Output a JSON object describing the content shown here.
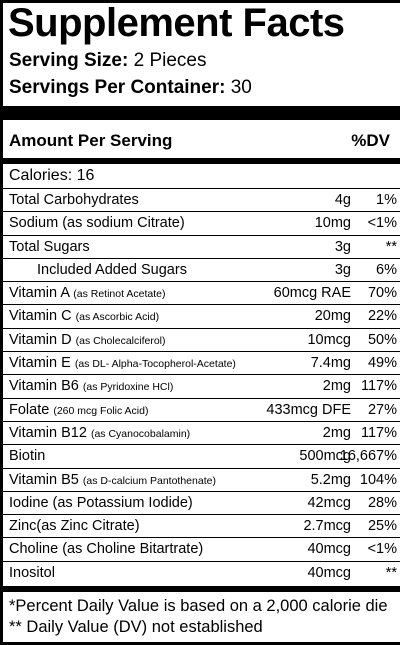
{
  "title": "Supplement Facts",
  "serving_size": {
    "label": "Serving Size:",
    "value": "2 Pieces"
  },
  "servings_per_container": {
    "label": "Servings Per Container:",
    "value": "30"
  },
  "table_header": {
    "amount": "Amount Per Serving",
    "dv": "%DV"
  },
  "calories": "Calories: 16",
  "rows": [
    {
      "name": "Total Carbohydrates",
      "sub": "",
      "amount": "4g",
      "dv": "1%",
      "indent": false
    },
    {
      "name": "Sodium (as sodium Citrate)",
      "sub": "",
      "amount": "10mg",
      "dv": "<1%",
      "indent": false
    },
    {
      "name": "Total Sugars",
      "sub": "",
      "amount": "3g",
      "dv": "**",
      "indent": false
    },
    {
      "name": "Included Added Sugars",
      "sub": "",
      "amount": "3g",
      "dv": "6%",
      "indent": true
    },
    {
      "name": "Vitamin A",
      "sub": "(as Retinot Acetate)",
      "amount": "60mcg RAE",
      "dv": "70%",
      "indent": false
    },
    {
      "name": "Vitamin C",
      "sub": "(as Ascorbic Acid)",
      "amount": "20mg",
      "dv": "22%",
      "indent": false
    },
    {
      "name": "Vitamin D",
      "sub": "(as Cholecalciferol)",
      "amount": "10mcg",
      "dv": "50%",
      "indent": false
    },
    {
      "name": "Vitamin E",
      "sub": "(as DL- Alpha-Tocopherol-Acetate)",
      "amount": "7.4mg",
      "dv": "49%",
      "indent": false
    },
    {
      "name": "Vitamin B6",
      "sub": "(as Pyridoxine HCl)",
      "amount": "2mg",
      "dv": "117%",
      "indent": false
    },
    {
      "name": "Folate",
      "sub": "(260 mcg Folic Acid)",
      "amount": "433mcg DFE",
      "dv": "27%",
      "indent": false
    },
    {
      "name": "Vitamin B12",
      "sub": "(as Cyanocobalamin)",
      "amount": "2mg",
      "dv": "117%",
      "indent": false
    },
    {
      "name": "Biotin",
      "sub": "",
      "amount": "500mcg",
      "dv": "16,667%",
      "indent": false
    },
    {
      "name": "Vitamin B5",
      "sub": "(as D-calcium Pantothenate)",
      "amount": "5.2mg",
      "dv": "104%",
      "indent": false
    },
    {
      "name": "Iodine (as Potassium Iodide)",
      "sub": "",
      "amount": "42mcg",
      "dv": "28%",
      "indent": false
    },
    {
      "name": "Zinc(as Zinc Citrate)",
      "sub": "",
      "amount": "2.7mcg",
      "dv": "25%",
      "indent": false
    },
    {
      "name": "Choline (as Choline Bitartrate)",
      "sub": "",
      "amount": "40mcg",
      "dv": "<1%",
      "indent": false
    },
    {
      "name": "Inositol",
      "sub": "",
      "amount": "40mcg",
      "dv": "**",
      "indent": false
    }
  ],
  "footnotes": [
    "*Percent Daily Value is based on a 2,000 calorie die",
    "** Daily Value (DV) not established"
  ]
}
